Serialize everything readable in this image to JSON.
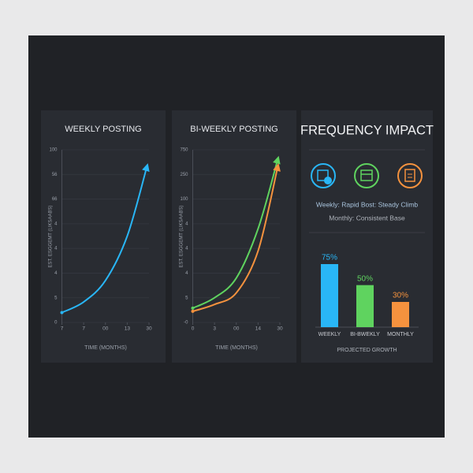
{
  "chart_data": [
    {
      "type": "line",
      "title": "WEEKLY POSTING",
      "y_label": "EST. ESGGEMT (LIKSAABS)",
      "x_label": "TIME (MONTHS)",
      "x": [
        0,
        1,
        2,
        3,
        3.9
      ],
      "series": [
        {
          "color": "#29b6f6",
          "values": [
            0.4,
            0.83,
            1.7,
            3.5,
            6.3
          ]
        }
      ],
      "xlim": [
        0,
        4
      ],
      "xticks": [
        {
          "value": 0,
          "label": "7"
        },
        {
          "value": 1,
          "label": "7"
        },
        {
          "value": 2,
          "label": "00"
        },
        {
          "value": 3,
          "label": "13"
        },
        {
          "value": 4,
          "label": "30"
        }
      ],
      "ylim": [
        0,
        7
      ],
      "yticks": [
        0,
        {
          "value": 1,
          "label": "5"
        },
        {
          "value": 2,
          "label": "4"
        },
        {
          "value": 3,
          "label": "4"
        },
        {
          "value": 4,
          "label": "4"
        },
        {
          "value": 5,
          "label": "66"
        },
        {
          "value": 6,
          "label": "56"
        },
        {
          "value": 7,
          "label": "100"
        }
      ],
      "grid": true
    },
    {
      "type": "line",
      "title": "BI-WEEKLY POSTING",
      "y_label": "EST. ESGGEMT (LIKSAABS)",
      "x_label": "TIME (MONTHS)",
      "x": [
        0,
        1,
        2,
        3,
        3.9
      ],
      "series": [
        {
          "color": "#5fd35f",
          "values": [
            0.58,
            1.0,
            1.8,
            3.8,
            6.6
          ]
        },
        {
          "color": "#f5923e",
          "values": [
            0.45,
            0.73,
            1.2,
            2.9,
            6.3
          ]
        }
      ],
      "xlim": [
        0,
        4
      ],
      "xticks": [
        0,
        {
          "value": 1,
          "label": "3"
        },
        {
          "value": 2,
          "label": "00"
        },
        {
          "value": 3,
          "label": "14"
        },
        {
          "value": 4,
          "label": "30"
        }
      ],
      "ylim": [
        0,
        7
      ],
      "yticks": [
        {
          "value": 0,
          "label": "-0"
        },
        {
          "value": 1,
          "label": "5"
        },
        {
          "value": 2,
          "label": "4"
        },
        {
          "value": 3,
          "label": "4"
        },
        {
          "value": 4,
          "label": "4"
        },
        {
          "value": 5,
          "label": "100"
        },
        {
          "value": 6,
          "label": "250"
        },
        {
          "value": 7,
          "label": "750"
        }
      ],
      "grid": true
    },
    {
      "type": "bar",
      "title": "FREQUENCY IMPACT",
      "notes": [
        "Weekly: Rapid Bost: Steady Climb",
        "Monthly: Consistent Base"
      ],
      "x_label": "PROJECTED GROWTH",
      "categories": [
        "WEEKLY",
        "BI-BWEKLY",
        "MONTHLY"
      ],
      "values": [
        75,
        50,
        30
      ],
      "value_labels": [
        "75%",
        "50%",
        "30%"
      ],
      "colors": [
        "#29b6f6",
        "#5fd35f",
        "#f5923e"
      ]
    }
  ]
}
